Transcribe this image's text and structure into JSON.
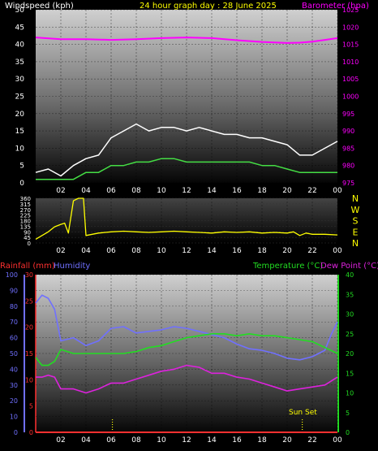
{
  "colors": {
    "wind": "#ffffff",
    "wind_speed": "#44dd44",
    "barometer": "#ff00ff",
    "wind_dir": "#ffff00",
    "rain": "#ff3030",
    "humidity": "#7070ff",
    "temperature": "#22dd22",
    "dewpoint": "#dd22dd",
    "axis_text": "#ffffff",
    "header_title": "#ffff00"
  },
  "header": {
    "wind_label": "Windspeed (kph)",
    "title": "24 hour graph day : 28 June 2025",
    "baro_label": "Barometer (hpa)"
  },
  "panel3_labels": {
    "rain": "Rainfall (mm)",
    "humidity": "Humidity",
    "temperature": "Temperature (°C)",
    "dewpoint": "Dew Point (°C)"
  },
  "sunset_label": "Sun Set",
  "chart_data": [
    {
      "type": "line",
      "id": "wind_baro",
      "x_ticks": [
        "02",
        "04",
        "06",
        "08",
        "10",
        "12",
        "14",
        "16",
        "18",
        "20",
        "22",
        "00"
      ],
      "y_left": {
        "label": "Windspeed (kph)",
        "ticks": [
          "0",
          "5",
          "10",
          "15",
          "20",
          "25",
          "30",
          "35",
          "40",
          "45",
          "50"
        ],
        "ylim": [
          0,
          50
        ]
      },
      "y_right": {
        "label": "Barometer (hpa)",
        "ticks": [
          "975",
          "980",
          "985",
          "990",
          "995",
          "1000",
          "1005",
          "1010",
          "1015",
          "1020",
          "1025"
        ],
        "ylim": [
          975,
          1025
        ]
      },
      "series": [
        {
          "name": "Windspeed (kph)",
          "axis": "left",
          "color": "#44dd44",
          "x": [
            0,
            1,
            2,
            3,
            4,
            5,
            6,
            7,
            8,
            9,
            10,
            11,
            12,
            13,
            14,
            15,
            16,
            17,
            18,
            19,
            20,
            21,
            22,
            23,
            24
          ],
          "y": [
            1,
            1,
            1,
            1,
            3,
            3,
            5,
            5,
            6,
            6,
            7,
            7,
            6,
            6,
            6,
            6,
            6,
            6,
            5,
            5,
            4,
            3,
            3,
            3,
            3
          ]
        },
        {
          "name": "Wind gust",
          "axis": "left",
          "color": "#ffffff",
          "x": [
            0,
            1,
            2,
            3,
            4,
            5,
            6,
            7,
            8,
            9,
            10,
            11,
            12,
            13,
            14,
            15,
            16,
            17,
            18,
            19,
            20,
            21,
            22,
            23,
            24
          ],
          "y": [
            3,
            4,
            2,
            5,
            7,
            8,
            13,
            15,
            17,
            15,
            16,
            16,
            15,
            16,
            15,
            14,
            14,
            13,
            13,
            12,
            11,
            8,
            8,
            10,
            12
          ]
        },
        {
          "name": "Barometer (hpa)",
          "axis": "right",
          "color": "#ff00ff",
          "x": [
            0,
            2,
            4,
            6,
            8,
            10,
            12,
            14,
            16,
            18,
            20,
            21,
            22,
            23,
            24
          ],
          "y": [
            1017,
            1016.5,
            1016.5,
            1016.3,
            1016.5,
            1016.8,
            1017,
            1016.8,
            1016.2,
            1015.7,
            1015.4,
            1015.5,
            1015.8,
            1016.3,
            1016.8
          ]
        }
      ]
    },
    {
      "type": "line",
      "id": "wind_direction",
      "x_ticks": [
        "02",
        "04",
        "06",
        "08",
        "10",
        "12",
        "14",
        "16",
        "18",
        "20",
        "22",
        "00"
      ],
      "y_left": {
        "ticks": [
          "0",
          "45",
          "90",
          "135",
          "180",
          "225",
          "270",
          "315",
          "360"
        ],
        "ylim": [
          0,
          360
        ]
      },
      "y_right": {
        "ticks": [
          "N",
          "W",
          "S",
          "E",
          "N"
        ]
      },
      "series": [
        {
          "name": "Wind direction",
          "color": "#ffff00",
          "x": [
            0,
            0.5,
            1,
            1.5,
            2,
            2.3,
            2.6,
            3,
            3.2,
            3.4,
            3.5,
            3.8,
            4,
            5,
            6,
            7,
            8,
            9,
            10,
            11,
            12,
            13,
            14,
            15,
            16,
            17,
            18,
            19,
            20,
            20.5,
            21,
            21.5,
            22,
            23,
            24
          ],
          "y": [
            30,
            60,
            90,
            130,
            150,
            160,
            80,
            340,
            350,
            360,
            360,
            360,
            60,
            80,
            90,
            95,
            90,
            85,
            90,
            95,
            90,
            85,
            80,
            90,
            85,
            90,
            80,
            85,
            80,
            90,
            60,
            80,
            70,
            70,
            65
          ]
        }
      ]
    },
    {
      "type": "line",
      "id": "temp_humidity_rain",
      "x_ticks": [
        "02",
        "04",
        "06",
        "08",
        "10",
        "12",
        "14",
        "16",
        "18",
        "20",
        "22",
        "00"
      ],
      "y_left_outer": {
        "label": "Humidity",
        "ticks": [
          "0",
          "10",
          "20",
          "30",
          "40",
          "50",
          "60",
          "70",
          "80",
          "90",
          "100"
        ],
        "ylim": [
          0,
          100
        ]
      },
      "y_left_inner": {
        "label": "Rainfall (mm)",
        "ticks": [
          "0",
          "5",
          "10",
          "15",
          "20",
          "25",
          "30"
        ],
        "ylim": [
          0,
          30
        ]
      },
      "y_right": {
        "label": "Temperature (°C)",
        "ticks": [
          "0",
          "5",
          "10",
          "15",
          "20",
          "25",
          "30",
          "35",
          "40"
        ],
        "ylim": [
          0,
          40
        ]
      },
      "series": [
        {
          "name": "Humidity",
          "axis": "left_outer",
          "color": "#7070ff",
          "x": [
            0,
            0.5,
            1,
            1.5,
            2,
            3,
            4,
            5,
            6,
            7,
            8,
            9,
            10,
            11,
            12,
            13,
            14,
            15,
            16,
            17,
            18,
            19,
            20,
            21,
            22,
            23,
            23.5,
            24
          ],
          "y": [
            82,
            87,
            85,
            78,
            58,
            60,
            55,
            58,
            66,
            67,
            63,
            64,
            65,
            67,
            66,
            64,
            62,
            60,
            56,
            53,
            52,
            50,
            47,
            46,
            48,
            52,
            62,
            70
          ]
        },
        {
          "name": "Temperature (°C)",
          "axis": "right",
          "color": "#22dd22",
          "x": [
            0,
            0.5,
            1,
            1.5,
            2,
            3,
            4,
            5,
            6,
            7,
            8,
            9,
            10,
            11,
            12,
            13,
            14,
            15,
            16,
            17,
            18,
            19,
            20,
            21,
            22,
            23,
            24
          ],
          "y": [
            19,
            17,
            17,
            18,
            21,
            20,
            20,
            20,
            20,
            20,
            20.5,
            21.5,
            22,
            23,
            24,
            24.5,
            25,
            25,
            24.5,
            25,
            24.5,
            24.5,
            24,
            23.5,
            23,
            21.5,
            20
          ]
        },
        {
          "name": "Dew Point (°C)",
          "axis": "right",
          "color": "#dd22dd",
          "x": [
            0,
            0.5,
            1,
            1.5,
            2,
            3,
            4,
            5,
            6,
            7,
            8,
            9,
            10,
            11,
            12,
            13,
            14,
            15,
            16,
            17,
            18,
            19,
            20,
            21,
            22,
            23,
            24
          ],
          "y": [
            14,
            14,
            14.5,
            14,
            11,
            11,
            10,
            11,
            12.5,
            12.5,
            13.5,
            14.5,
            15.5,
            16,
            17,
            16.5,
            15,
            15,
            14,
            13.5,
            12.5,
            11.5,
            10.5,
            11,
            11.5,
            12,
            14
          ]
        },
        {
          "name": "Rainfall (mm)",
          "axis": "left_inner",
          "color": "#ff3030",
          "x": [
            0,
            24
          ],
          "y": [
            0,
            0
          ]
        }
      ],
      "markers": [
        {
          "x": 6.1,
          "color": "#ffff00",
          "style": "dotted"
        },
        {
          "x": 21.2,
          "color": "#ffff00",
          "style": "dotted",
          "label": "Sun Set"
        }
      ]
    }
  ]
}
